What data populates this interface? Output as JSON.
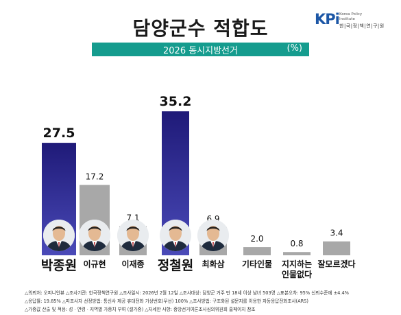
{
  "title": "담양군수 적합도",
  "subtitle": "2026 동시지방선거",
  "unit": "(%)",
  "logo": {
    "mark": "KPi",
    "en": "Korea Policy Institute",
    "ko": "한|국|정|책|연|구|원"
  },
  "chart_data": {
    "type": "bar",
    "title": "담양군수 적합도",
    "subtitle": "2026 동시지방선거",
    "unit": "%",
    "ylim": [
      0,
      40
    ],
    "grid": false,
    "categories": [
      "박종원",
      "이규현",
      "이재종",
      "정철원",
      "최화삼",
      "기타인물",
      "지지하는 인물없다",
      "잘모르겠다"
    ],
    "values": [
      27.5,
      17.2,
      7.1,
      35.2,
      6.9,
      2.0,
      0.8,
      3.4
    ],
    "value_labels": [
      "27.5",
      "17.2",
      "7.1",
      "35.2",
      "6.9",
      "2.0",
      "0.8",
      "3.4"
    ],
    "colors": [
      "#2c2a8c",
      "#a8a8a8",
      "#a8a8a8",
      "#2c2a8c",
      "#a8a8a8",
      "#a8a8a8",
      "#a8a8a8",
      "#a8a8a8"
    ]
  },
  "candidates": [
    {
      "name": "박종원",
      "highlight": true,
      "has_photo": true
    },
    {
      "name": "이규현",
      "highlight": false,
      "has_photo": true
    },
    {
      "name": "이재종",
      "highlight": false,
      "has_photo": true
    },
    {
      "name": "정철원",
      "highlight": true,
      "has_photo": true
    },
    {
      "name": "최화삼",
      "highlight": false,
      "has_photo": true
    },
    {
      "name": "기타인물",
      "highlight": false,
      "has_photo": false
    },
    {
      "name": "지지하는 인물없다",
      "highlight": false,
      "has_photo": false
    },
    {
      "name": "잘모르겠다",
      "highlight": false,
      "has_photo": false
    }
  ],
  "footnotes": [
    "△의뢰처: 오피니언뷰 △조사기관: 한국정책연구원 △조사일시: 2026년 2월 12일 △조사대상: 담양군 거주 만 18세 이상 남녀 503명 △표본오차: 95% 신뢰수준에 ±4.4%",
    "△응답률: 19.85% △피조사자 선정방법: 통신사 제공 휴대전화 가상번호(무선) 100% △조사방법: 구조화된 설문지를 이용한 자동응답전화조사(ARS)",
    "△가중값 산출 및 적용: 성 · 연령 · 지역별 가중치 부여 (셀가중) △자세한 사항: 중앙선거여론조사심의위원회 홈페이지 참조"
  ],
  "colors": {
    "accent_bar": "#159c8e",
    "highlight_bar": "#2c2a8c",
    "other_bar": "#a8a8a8"
  }
}
